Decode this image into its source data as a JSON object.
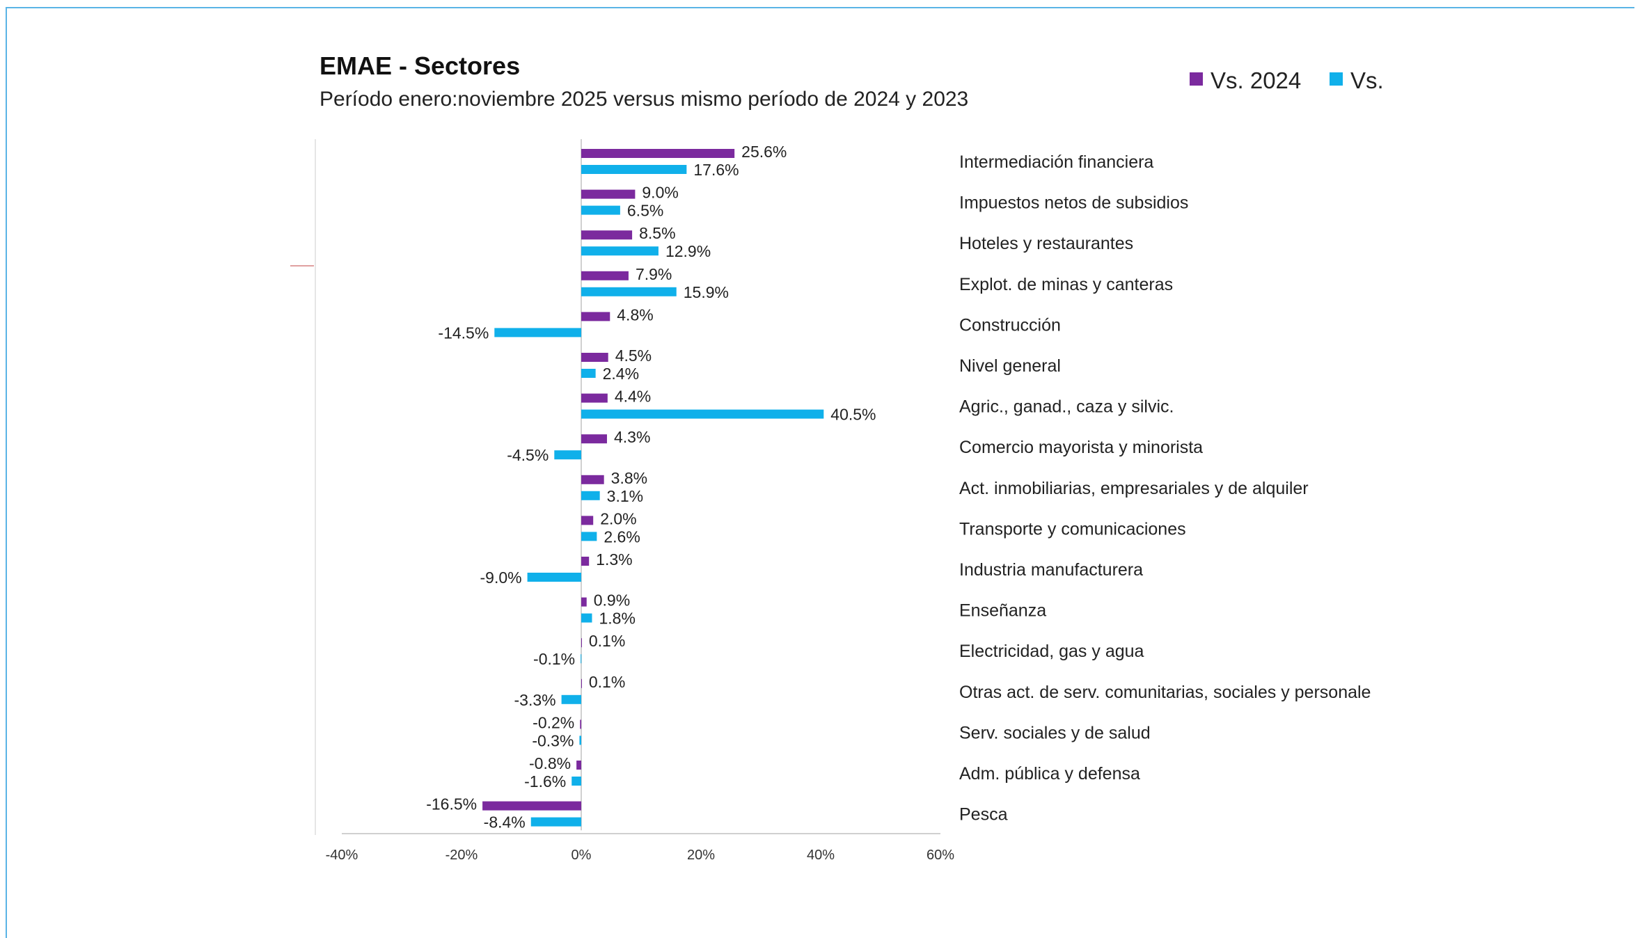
{
  "chart_data": {
    "type": "bar",
    "orientation": "horizontal",
    "title": "EMAE - Sectores",
    "subtitle": "Período enero:noviembre 2025 versus mismo período de 2024 y 2023",
    "xlim": [
      -40,
      60
    ],
    "x_ticks": [
      "-40%",
      "-20%",
      "0%",
      "20%",
      "40%",
      "60%"
    ],
    "legend_position": "top-right",
    "categories": [
      "Intermediación financiera",
      "Impuestos netos de subsidios",
      "Hoteles y restaurantes",
      "Explot. de minas y canteras",
      "Construcción",
      "Nivel general",
      "Agric., ganad., caza y silvic.",
      "Comercio mayorista y minorista",
      "Act. inmobiliarias, empresariales y de alquiler",
      "Transporte y comunicaciones",
      "Industria manufacturera",
      "Enseñanza",
      "Electricidad, gas y agua",
      "Otras act. de serv. comunitarias, sociales y personale",
      "Serv. sociales y de salud",
      "Adm. pública y defensa",
      "Pesca"
    ],
    "series": [
      {
        "name": "Vs. 2024",
        "color": "#7b2a9e",
        "values": [
          25.6,
          9.0,
          8.5,
          7.9,
          4.8,
          4.5,
          4.4,
          4.3,
          3.8,
          2.0,
          1.3,
          0.9,
          0.1,
          0.1,
          -0.2,
          -0.8,
          -16.5
        ],
        "labels": [
          "25.6%",
          "9.0%",
          "8.5%",
          "7.9%",
          "4.8%",
          "4.5%",
          "4.4%",
          "4.3%",
          "3.8%",
          "2.0%",
          "1.3%",
          "0.9%",
          "0.1%",
          "0.1%",
          "-0.2%",
          "-0.8%",
          "-16.5%"
        ]
      },
      {
        "name": "Vs.",
        "color": "#10b0ea",
        "values": [
          17.6,
          6.5,
          12.9,
          15.9,
          -14.5,
          2.4,
          40.5,
          -4.5,
          3.1,
          2.6,
          -9.0,
          1.8,
          -0.1,
          -3.3,
          -0.3,
          -1.6,
          -8.4
        ],
        "labels": [
          "17.6%",
          "6.5%",
          "12.9%",
          "15.9%",
          "-14.5%",
          "2.4%",
          "40.5%",
          "-4.5%",
          "3.1%",
          "2.6%",
          "-9.0%",
          "1.8%",
          "-0.1%",
          "-3.3%",
          "-0.3%",
          "-1.6%",
          "-8.4%"
        ]
      }
    ]
  }
}
